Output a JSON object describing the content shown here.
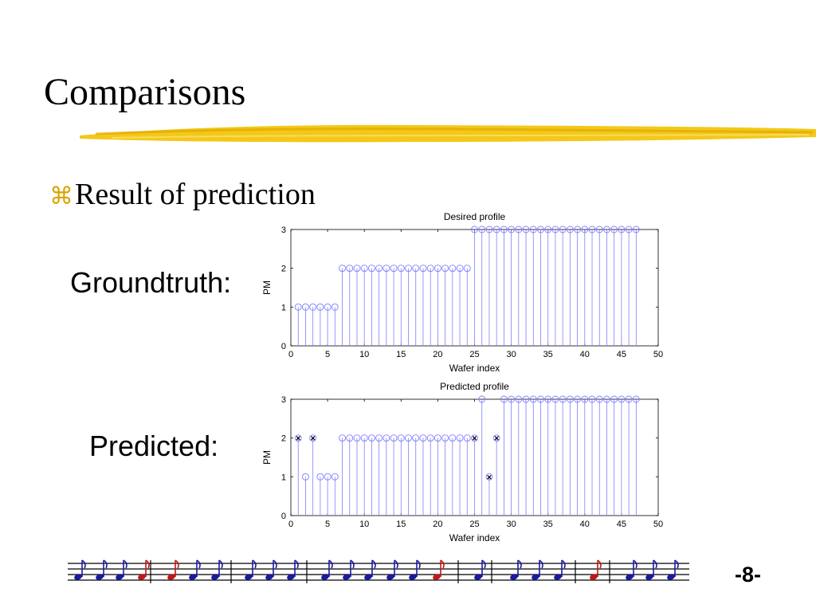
{
  "slide": {
    "title": "Comparisons",
    "bullet_glyph": "⌘",
    "bullet_text": "Result of prediction",
    "groundtruth_label": "Groundtruth:",
    "predicted_label": "Predicted:",
    "page_number": "-8-",
    "accent_color": "#f2c200"
  },
  "chart_data": [
    {
      "type": "stem",
      "title": "Desired profile",
      "xlabel": "Wafer index",
      "ylabel": "PM",
      "xlim": [
        0,
        50
      ],
      "ylim": [
        0,
        3
      ],
      "xticks": [
        0,
        5,
        10,
        15,
        20,
        25,
        30,
        35,
        40,
        45,
        50
      ],
      "yticks": [
        0,
        1,
        2,
        3
      ],
      "grid": false,
      "series": [
        {
          "color": "#7f7fff",
          "x": [
            1,
            2,
            3,
            4,
            5,
            6,
            7,
            8,
            9,
            10,
            11,
            12,
            13,
            14,
            15,
            16,
            17,
            18,
            19,
            20,
            21,
            22,
            23,
            24,
            25,
            26,
            27,
            28,
            29,
            30,
            31,
            32,
            33,
            34,
            35,
            36,
            37,
            38,
            39,
            40,
            41,
            42,
            43,
            44,
            45,
            46,
            47
          ],
          "y": [
            1,
            1,
            1,
            1,
            1,
            1,
            2,
            2,
            2,
            2,
            2,
            2,
            2,
            2,
            2,
            2,
            2,
            2,
            2,
            2,
            2,
            2,
            2,
            2,
            3,
            3,
            3,
            3,
            3,
            3,
            3,
            3,
            3,
            3,
            3,
            3,
            3,
            3,
            3,
            3,
            3,
            3,
            3,
            3,
            3,
            3,
            3
          ]
        }
      ],
      "errors": {
        "x": [],
        "y": []
      }
    },
    {
      "type": "stem",
      "title": "Predicted profile",
      "xlabel": "Wafer index",
      "ylabel": "PM",
      "xlim": [
        0,
        50
      ],
      "ylim": [
        0,
        3
      ],
      "xticks": [
        0,
        5,
        10,
        15,
        20,
        25,
        30,
        35,
        40,
        45,
        50
      ],
      "yticks": [
        0,
        1,
        2,
        3
      ],
      "grid": false,
      "series": [
        {
          "color": "#7f7fff",
          "x": [
            1,
            2,
            3,
            4,
            5,
            6,
            7,
            8,
            9,
            10,
            11,
            12,
            13,
            14,
            15,
            16,
            17,
            18,
            19,
            20,
            21,
            22,
            23,
            24,
            25,
            26,
            27,
            28,
            29,
            30,
            31,
            32,
            33,
            34,
            35,
            36,
            37,
            38,
            39,
            40,
            41,
            42,
            43,
            44,
            45,
            46,
            47
          ],
          "y": [
            2,
            1,
            2,
            1,
            1,
            1,
            2,
            2,
            2,
            2,
            2,
            2,
            2,
            2,
            2,
            2,
            2,
            2,
            2,
            2,
            2,
            2,
            2,
            2,
            2,
            3,
            1,
            2,
            3,
            3,
            3,
            3,
            3,
            3,
            3,
            3,
            3,
            3,
            3,
            3,
            3,
            3,
            3,
            3,
            3,
            3,
            3
          ]
        }
      ],
      "errors": {
        "color": "#dd0000",
        "x": [
          1,
          3,
          25,
          27,
          28
        ],
        "y": [
          2,
          2,
          2,
          1,
          2
        ]
      }
    }
  ]
}
